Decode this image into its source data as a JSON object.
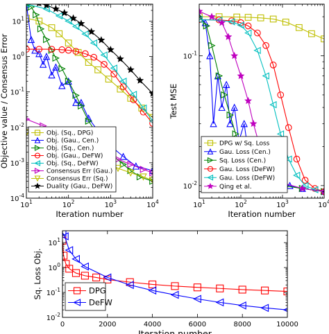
{
  "chart_data": [
    {
      "type": "line",
      "xscale": "log",
      "yscale": "log",
      "xlim": [
        10,
        10000
      ],
      "ylim": [
        0.0001,
        30
      ],
      "xlabel": "Iteration number",
      "ylabel": "Objective value / Consensus Error",
      "xticks": [
        "10^1",
        "10^2",
        "10^3",
        "10^4"
      ],
      "yticks": [
        "10^-4",
        "10^-3",
        "10^-2",
        "10^-1",
        "10^0",
        "10^1"
      ],
      "legend_position": "lower-left",
      "series": [
        {
          "name": "Obj. (Sq., DPG)",
          "color": "#bfbf00",
          "marker": "square",
          "x": [
            10,
            20,
            40,
            60,
            100,
            170,
            300,
            500,
            900,
            1700,
            3000,
            5500,
            10000
          ],
          "y": [
            12,
            10,
            6.5,
            4.4,
            2.4,
            1.3,
            0.68,
            0.42,
            0.23,
            0.12,
            0.066,
            0.035,
            0.019
          ]
        },
        {
          "name": "Obj. (Gau., Cen.)",
          "color": "#0000ff",
          "marker": "triangle-up",
          "x": [
            10,
            13,
            16,
            20,
            25,
            30,
            40,
            50,
            70,
            100,
            150,
            200,
            300,
            500,
            700,
            1000,
            2000,
            4000,
            10000
          ],
          "y": [
            30,
            3,
            1.5,
            1.2,
            0.6,
            1.0,
            0.3,
            0.5,
            0.15,
            0.2,
            0.05,
            0.05,
            0.018,
            0.008,
            0.005,
            0.003,
            0.0015,
            0.0008,
            0.0006
          ]
        },
        {
          "name": "Obj. (Sq., Cen.)",
          "color": "#008000",
          "marker": "triangle-right",
          "x": [
            10,
            13,
            17,
            22,
            30,
            40,
            50,
            70,
            100,
            150,
            200,
            300,
            500,
            700,
            1000,
            2000,
            3000,
            5000,
            10000
          ],
          "y": [
            30,
            25,
            15,
            6,
            3,
            1.5,
            0.9,
            0.45,
            0.2,
            0.08,
            0.04,
            0.015,
            0.006,
            0.003,
            0.0018,
            0.0009,
            0.0006,
            0.0004,
            0.0003
          ]
        },
        {
          "name": "Obj. (Gau., DeFW)",
          "color": "#ff0000",
          "marker": "circle",
          "x": [
            10,
            20,
            40,
            70,
            100,
            150,
            250,
            400,
            700,
            1200,
            2000,
            3500,
            6000,
            10000
          ],
          "y": [
            1.6,
            1.6,
            1.6,
            1.55,
            1.5,
            1.4,
            1.2,
            0.95,
            0.6,
            0.32,
            0.14,
            0.06,
            0.027,
            0.013
          ]
        },
        {
          "name": "Obj. (Sq., DeFW)",
          "color": "#00bfbf",
          "marker": "triangle-left",
          "x": [
            10,
            30,
            60,
            100,
            150,
            250,
            400,
            700,
            1200,
            2000,
            3500,
            6000,
            10000
          ],
          "y": [
            30,
            22,
            14,
            10,
            7,
            4.3,
            2.4,
            1.1,
            0.47,
            0.2,
            0.085,
            0.035,
            0.015
          ]
        },
        {
          "name": "Consensus Err (Gau.)",
          "color": "#bf00bf",
          "marker": "triangle-right",
          "x": [
            10,
            25,
            50,
            100,
            200,
            400,
            800,
            1500,
            3000,
            6000,
            10000
          ],
          "y": [
            0.017,
            0.011,
            0.0075,
            0.005,
            0.0034,
            0.0024,
            0.0017,
            0.00125,
            0.0009,
            0.00065,
            0.00052
          ]
        },
        {
          "name": "Consensus Err (Sq.)",
          "color": "#bfbf00",
          "marker": "triangle-down",
          "x": [
            10,
            25,
            50,
            100,
            200,
            400,
            800,
            1500,
            3000,
            6000,
            10000
          ],
          "y": [
            0.007,
            0.0048,
            0.0034,
            0.0024,
            0.0018,
            0.0013,
            0.00095,
            0.0007,
            0.00052,
            0.0004,
            0.00032
          ]
        },
        {
          "name": "Duality (Gau., DeFW)",
          "color": "#000000",
          "marker": "star",
          "x": [
            10,
            20,
            30,
            50,
            80,
            130,
            200,
            350,
            600,
            1000,
            1700,
            3000,
            5000,
            10000
          ],
          "y": [
            40,
            32,
            28,
            22,
            17,
            12,
            8.5,
            5,
            2.9,
            1.55,
            0.85,
            0.42,
            0.21,
            0.09
          ]
        }
      ]
    },
    {
      "type": "line",
      "xscale": "log",
      "yscale": "log",
      "xlim": [
        10,
        10000
      ],
      "ylim": [
        0.008,
        0.25
      ],
      "xlabel": "Iteration number",
      "ylabel": "Test MSE",
      "xticks": [
        "10^1",
        "10^2",
        "10^3",
        "10^4"
      ],
      "yticks": [
        "10^-2",
        "10^-1"
      ],
      "legend_position": "lower-left",
      "series": [
        {
          "name": "DPG w/ Sq. Loss",
          "color": "#bfbf00",
          "marker": "square",
          "x": [
            10,
            30,
            80,
            150,
            300,
            600,
            1200,
            2500,
            5000,
            10000
          ],
          "y": [
            0.2,
            0.2,
            0.199,
            0.198,
            0.196,
            0.192,
            0.182,
            0.165,
            0.148,
            0.135
          ]
        },
        {
          "name": "Gau. Loss (Cen.)",
          "color": "#0000ff",
          "marker": "triangle-up",
          "x": [
            10,
            14,
            18,
            22,
            28,
            35,
            45,
            55,
            70,
            90,
            120,
            160,
            220,
            300,
            500,
            800,
            1500,
            3000,
            10000
          ],
          "y": [
            0.2,
            0.18,
            0.1,
            0.03,
            0.07,
            0.04,
            0.06,
            0.03,
            0.04,
            0.022,
            0.03,
            0.016,
            0.018,
            0.012,
            0.011,
            0.0105,
            0.01,
            0.0095,
            0.009
          ]
        },
        {
          "name": "Sq. Loss (Cen.)",
          "color": "#008000",
          "marker": "triangle-right",
          "x": [
            10,
            15,
            20,
            30,
            40,
            55,
            75,
            100,
            150,
            200,
            300,
            500,
            1000,
            3000,
            10000
          ],
          "y": [
            0.2,
            0.17,
            0.12,
            0.07,
            0.05,
            0.035,
            0.025,
            0.019,
            0.014,
            0.012,
            0.011,
            0.0105,
            0.01,
            0.0095,
            0.009
          ]
        },
        {
          "name": "Gau. Loss (DeFW)",
          "color": "#ff0000",
          "marker": "circle",
          "x": [
            10,
            30,
            60,
            100,
            150,
            250,
            400,
            600,
            900,
            1400,
            2200,
            3500,
            6000,
            10000
          ],
          "y": [
            0.19,
            0.189,
            0.186,
            0.18,
            0.17,
            0.15,
            0.12,
            0.085,
            0.05,
            0.028,
            0.016,
            0.011,
            0.0095,
            0.009
          ]
        },
        {
          "name": "Gau. Loss (DeFW)",
          "color": "#00bfbf",
          "marker": "triangle-left",
          "x": [
            10,
            30,
            60,
            100,
            150,
            250,
            400,
            600,
            900,
            1400,
            2200,
            3500,
            6000,
            10000
          ],
          "y": [
            0.19,
            0.188,
            0.183,
            0.172,
            0.15,
            0.11,
            0.07,
            0.042,
            0.025,
            0.016,
            0.012,
            0.01,
            0.0093,
            0.009
          ]
        },
        {
          "name": "Qing et al.",
          "color": "#bf00bf",
          "marker": "star",
          "x": [
            10,
            20,
            35,
            50,
            70,
            100,
            150,
            200,
            300,
            500,
            1000,
            3000,
            10000
          ],
          "y": [
            0.22,
            0.2,
            0.18,
            0.14,
            0.1,
            0.07,
            0.045,
            0.03,
            0.019,
            0.013,
            0.0105,
            0.0095,
            0.009
          ]
        }
      ]
    },
    {
      "type": "line",
      "xscale": "linear",
      "yscale": "log",
      "xlim": [
        0,
        10000
      ],
      "ylim": [
        0.01,
        30
      ],
      "xlabel": "Iteration number",
      "ylabel": "Sq. Loss Obj.",
      "xticks": [
        "0",
        "2000",
        "4000",
        "6000",
        "8000",
        "10000"
      ],
      "yticks": [
        "10^-2",
        "10^-1",
        "10^0",
        "10^1"
      ],
      "legend_position": "lower-left",
      "series": [
        {
          "name": "DPG",
          "color": "#ff0000",
          "marker": "square",
          "x": [
            0,
            50,
            150,
            300,
            600,
            1000,
            1500,
            2000,
            3000,
            4000,
            5000,
            6000,
            7000,
            8000,
            9000,
            10000
          ],
          "y": [
            12,
            3,
            1.4,
            0.9,
            0.6,
            0.47,
            0.4,
            0.33,
            0.26,
            0.21,
            0.18,
            0.16,
            0.145,
            0.13,
            0.12,
            0.11
          ]
        },
        {
          "name": "DeFW",
          "color": "#0000ff",
          "marker": "triangle-left",
          "x": [
            0,
            100,
            300,
            600,
            1000,
            2000,
            3000,
            4000,
            5000,
            6000,
            7000,
            8000,
            9000,
            10000
          ],
          "y": [
            25,
            18,
            5,
            2.2,
            1.1,
            0.4,
            0.2,
            0.12,
            0.08,
            0.055,
            0.04,
            0.03,
            0.024,
            0.02
          ]
        }
      ]
    }
  ]
}
